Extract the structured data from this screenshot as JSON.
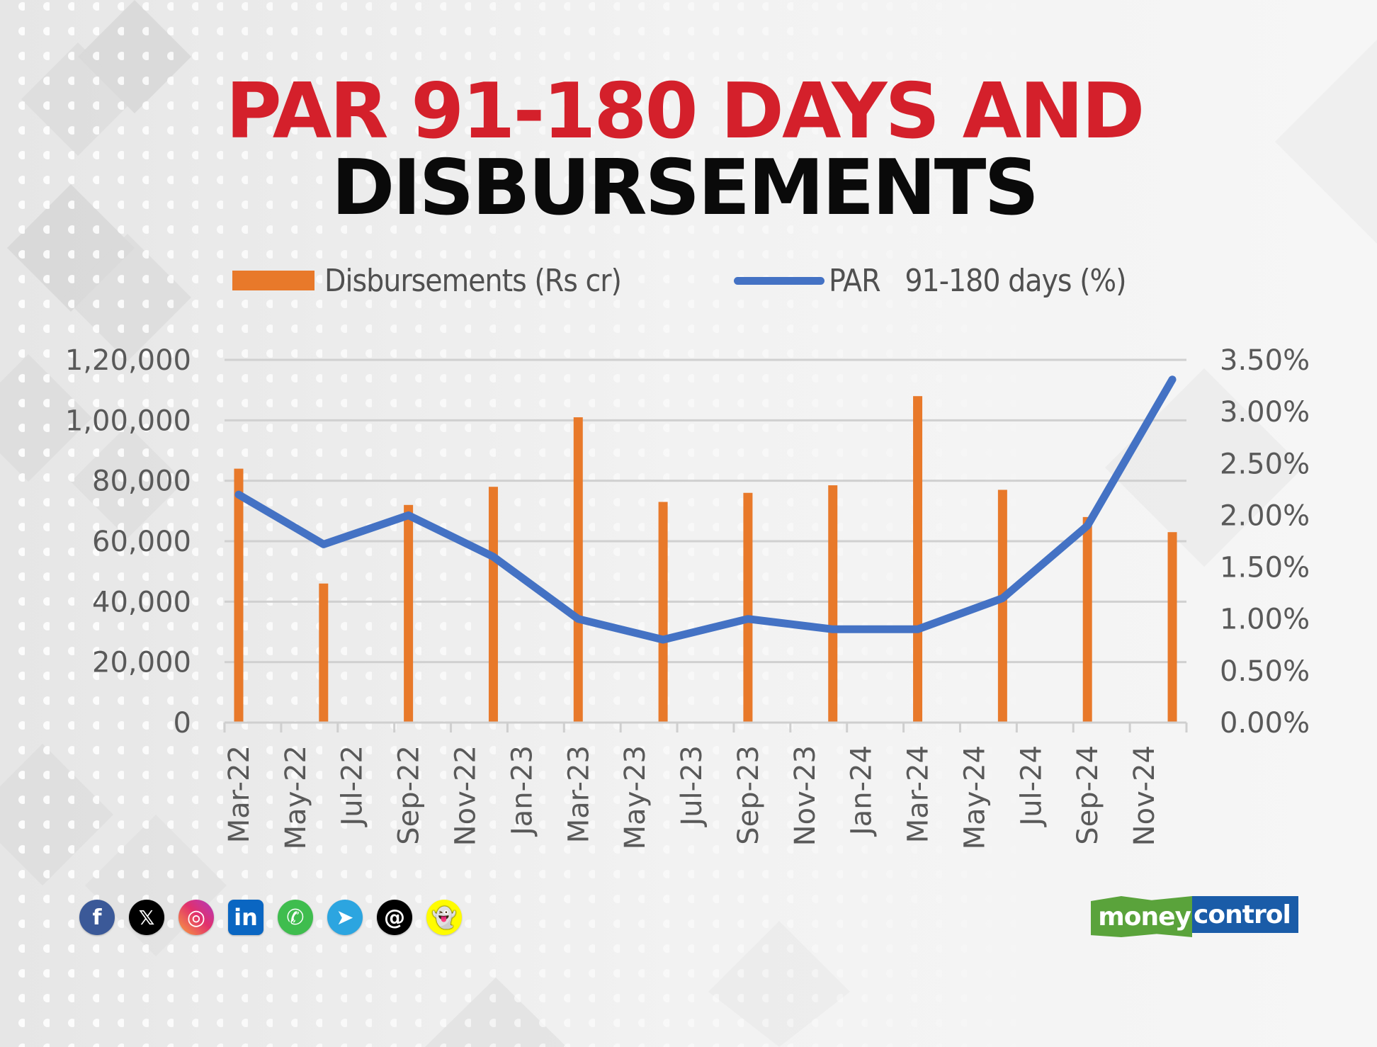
{
  "title": {
    "line1": "PAR 91-180 DAYS AND",
    "line2": "DISBURSEMENTS"
  },
  "legend": [
    {
      "label": "Disbursements (Rs cr)",
      "type": "bar",
      "color": "#e8792a"
    },
    {
      "label": "PAR   91-180 days (%)",
      "type": "line",
      "color": "#4472c4"
    }
  ],
  "colors": {
    "title_accent": "#d4202b",
    "title_main": "#0a0a0a",
    "bar": "#e8792a",
    "line": "#4472c4",
    "gridline": "#d0d0d0",
    "axis_text": "#595959"
  },
  "chart_data": {
    "type": "bar+line",
    "title": "PAR 91-180 DAYS AND DISBURSEMENTS",
    "categories": [
      "Mar-22",
      "Jun-22",
      "Sep-22",
      "Dec-22",
      "Mar-23",
      "Jun-23",
      "Sep-23",
      "Dec-23",
      "Mar-24",
      "Jun-24",
      "Sep-24",
      "Dec-24"
    ],
    "series": [
      {
        "name": "Disbursements (Rs cr)",
        "type": "bar",
        "axis": "left",
        "values": [
          84000,
          46000,
          72000,
          78000,
          101000,
          73000,
          76000,
          78500,
          108000,
          77000,
          68000,
          63000
        ]
      },
      {
        "name": "PAR 91-180 days (%)",
        "type": "line",
        "axis": "right",
        "values": [
          2.2,
          1.72,
          2.0,
          1.6,
          1.0,
          0.8,
          1.0,
          0.9,
          0.9,
          1.2,
          1.9,
          3.31
        ]
      }
    ],
    "x_tick_labels": [
      "Mar-22",
      "May-22",
      "Jul-22",
      "Sep-22",
      "Nov-22",
      "Jan-23",
      "Mar-23",
      "May-23",
      "Jul-23",
      "Sep-23",
      "Nov-23",
      "Jan-24",
      "Mar-24",
      "May-24",
      "Jul-24",
      "Sep-24",
      "Nov-24"
    ],
    "left_axis": {
      "ticks": [
        "0",
        "20,000",
        "40,000",
        "60,000",
        "80,000",
        "1,00,000",
        "1,20,000"
      ],
      "ylim": [
        0,
        120000
      ]
    },
    "right_axis": {
      "ticks": [
        "0.00%",
        "0.50%",
        "1.00%",
        "1.50%",
        "2.00%",
        "2.50%",
        "3.00%",
        "3.50%"
      ],
      "ylim": [
        0,
        3.5
      ]
    },
    "xlabel": "",
    "ylabel": "",
    "grid": true,
    "legend_position": "top"
  },
  "social_icons": [
    {
      "name": "facebook",
      "glyph": "f",
      "bg": "#3b5998"
    },
    {
      "name": "x",
      "glyph": "𝕏",
      "bg": "#000000"
    },
    {
      "name": "instagram",
      "glyph": "◎",
      "bg": "#e1306c"
    },
    {
      "name": "linkedin",
      "glyph": "in",
      "bg": "#0a66c2"
    },
    {
      "name": "whatsapp",
      "glyph": "✆",
      "bg": "#3fbd4e"
    },
    {
      "name": "telegram",
      "glyph": "➤",
      "bg": "#2ca5e0"
    },
    {
      "name": "threads",
      "glyph": "@",
      "bg": "#000000"
    },
    {
      "name": "snapchat",
      "glyph": "👻",
      "bg": "#fffc00"
    }
  ],
  "brand": {
    "part1": "money",
    "part2": "control"
  }
}
